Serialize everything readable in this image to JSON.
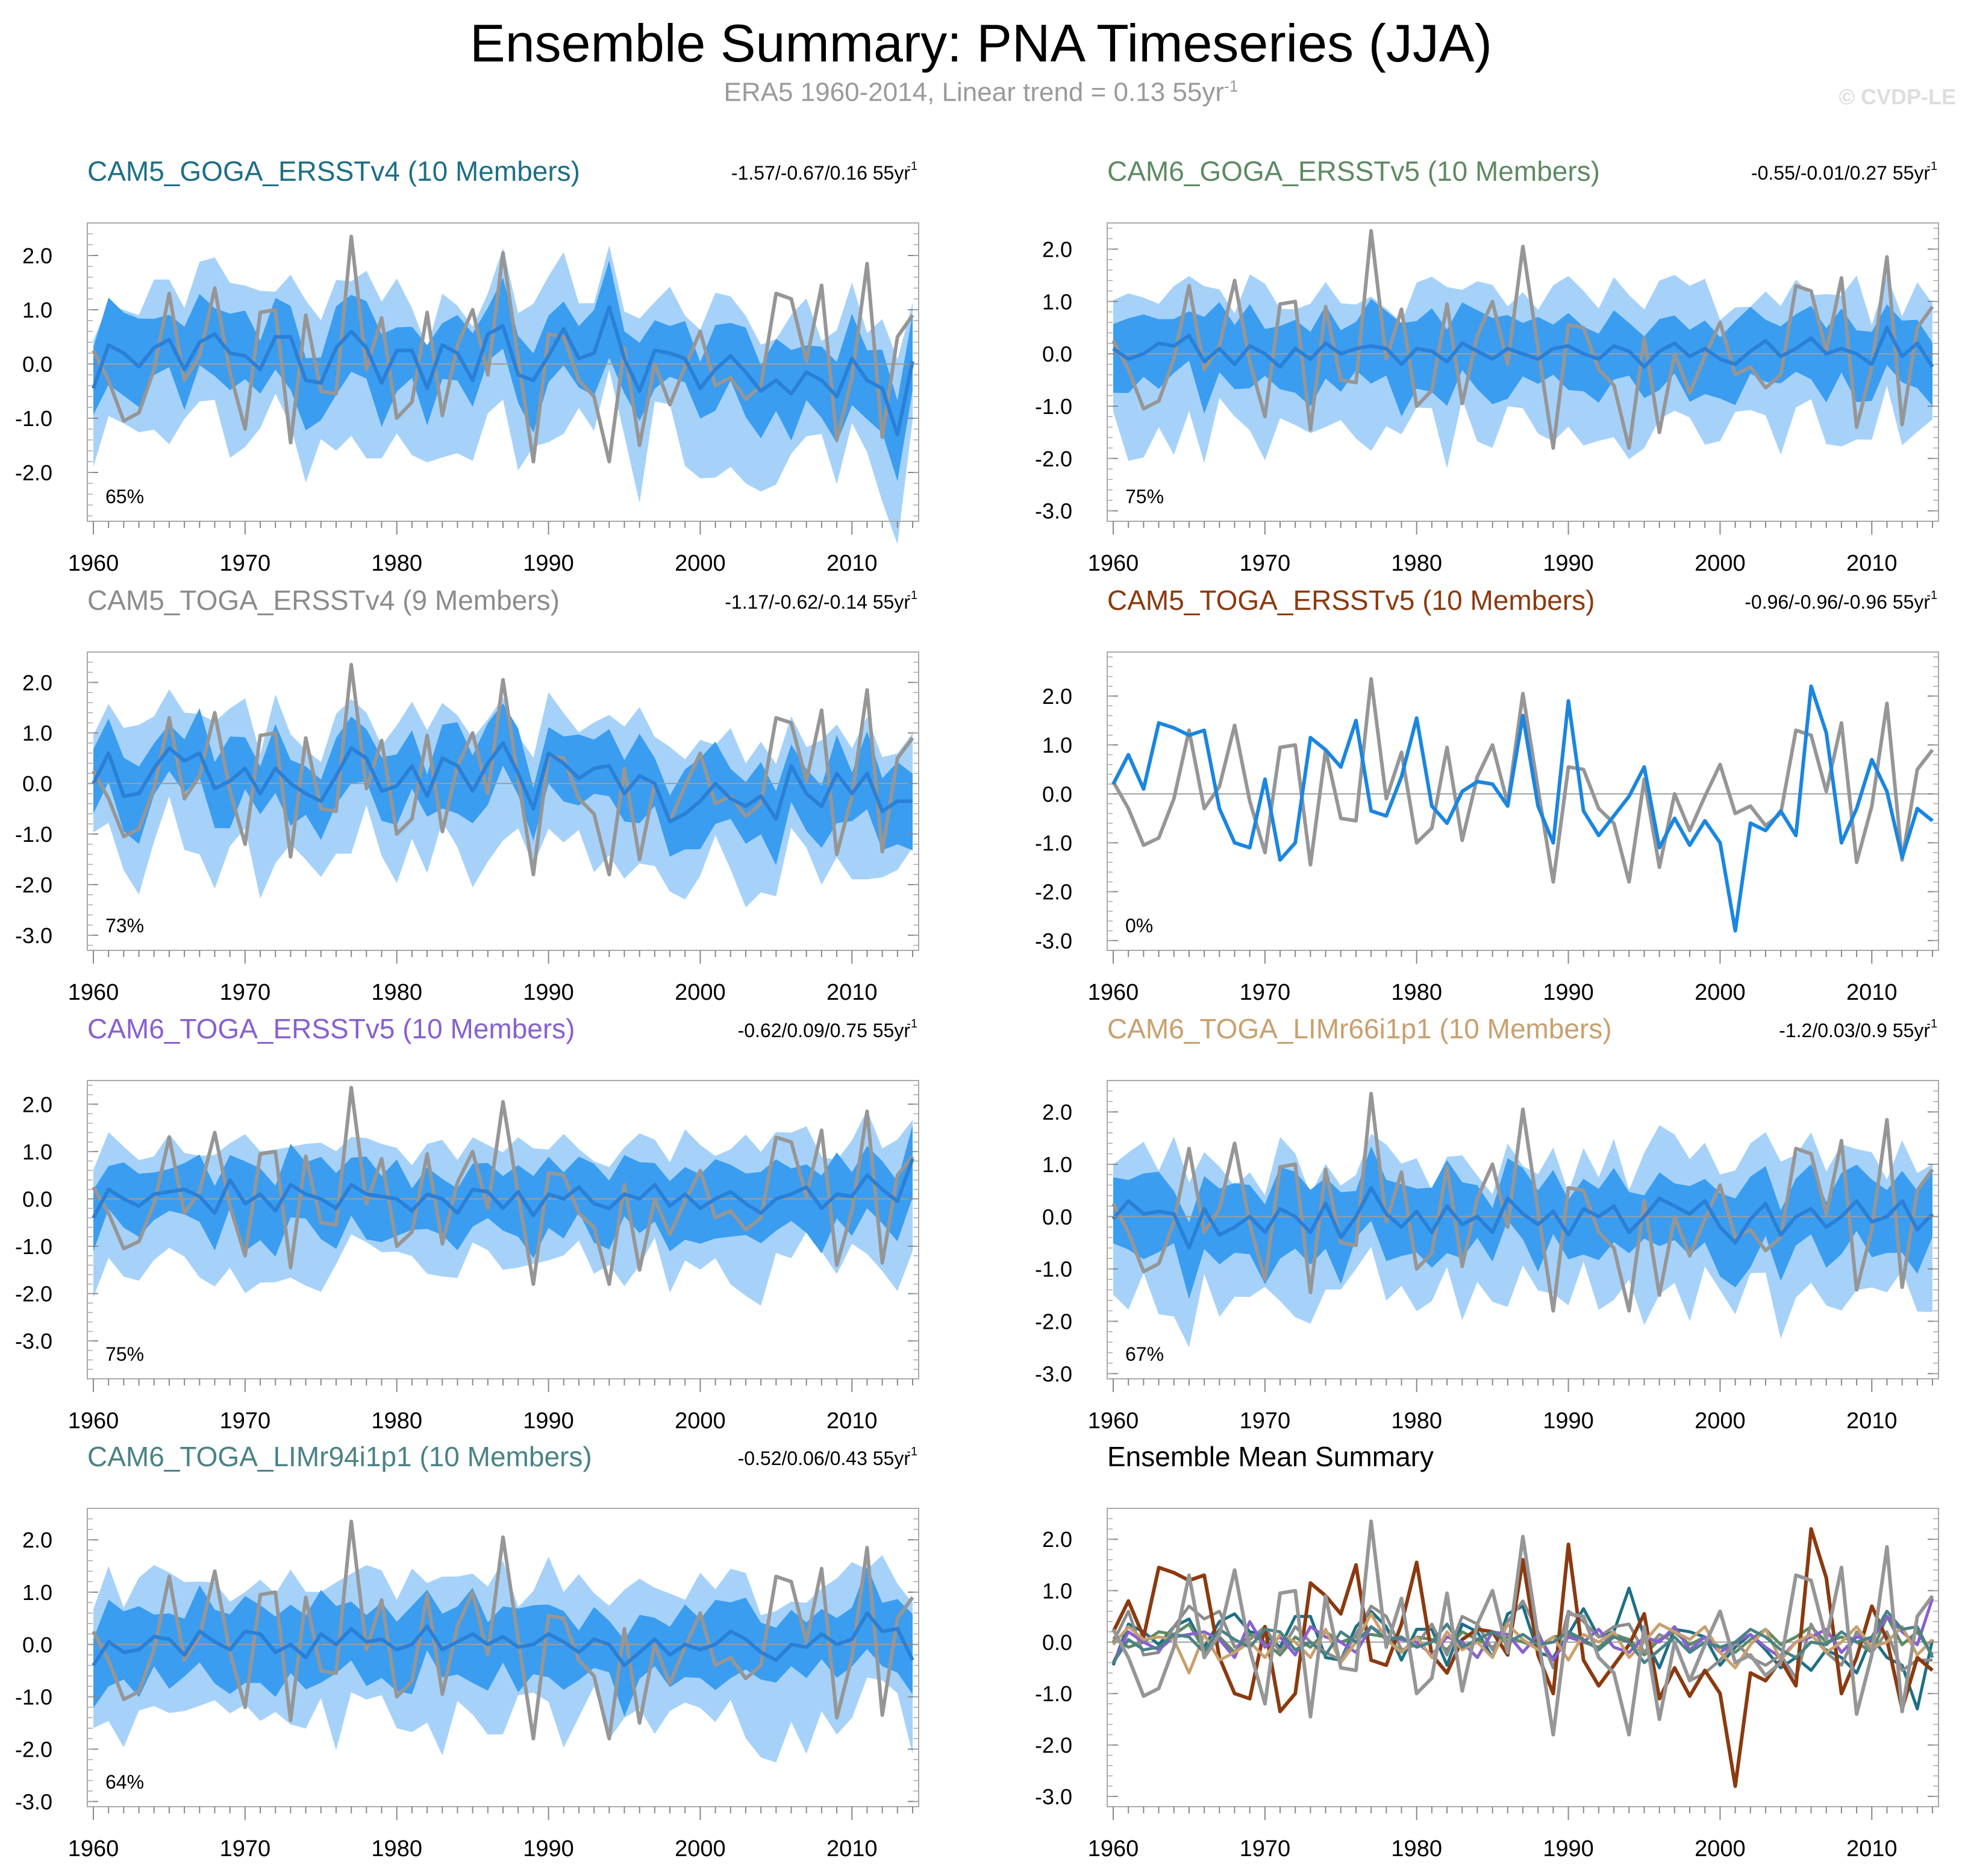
{
  "title": "Ensemble Summary: PNA Timeseries (JJA)",
  "subtitle": {
    "text": "ERA5 1960-2014, Linear trend = 0.13 55yr",
    "exp": "-1"
  },
  "copyright": "© CVDP-LE",
  "colors": {
    "outer_band": "#a6d2fa",
    "inner_band": "#3a9df0",
    "ens_mean": "#2a7fd6",
    "obs": "#969696",
    "zero_line": "#9e9e9e"
  },
  "chart_data": [
    {
      "type": "area",
      "id": "p1",
      "title": "CAM5_GOGA_ERSSTv4 (10 Members)",
      "title_color": "#1d6f86",
      "trend": "-1.57/-0.67/0.16 55yr",
      "trend_exp": "-1",
      "pct": "65%",
      "ylim": [
        -2.9,
        2.6
      ],
      "yticks": [
        -2.0,
        -1.0,
        0.0,
        1.0,
        2.0
      ],
      "xticks": [
        1960,
        1970,
        1980,
        1990,
        2000,
        2010
      ]
    },
    {
      "type": "area",
      "id": "p2",
      "title": "CAM6_GOGA_ERSSTv5 (10 Members)",
      "title_color": "#5d8a62",
      "trend": "-0.55/-0.01/0.27 55yr",
      "trend_exp": "-1",
      "pct": "75%",
      "ylim": [
        -3.2,
        2.5
      ],
      "yticks": [
        -3.0,
        -2.0,
        -1.0,
        0.0,
        1.0,
        2.0
      ],
      "xticks": [
        1960,
        1970,
        1980,
        1990,
        2000,
        2010
      ]
    },
    {
      "type": "area",
      "id": "p3",
      "title": "CAM5_TOGA_ERSSTv4 (9 Members)",
      "title_color": "#8c8c8c",
      "trend": "-1.17/-0.62/-0.14 55yr",
      "trend_exp": "-1",
      "pct": "73%",
      "ylim": [
        -3.3,
        2.6
      ],
      "yticks": [
        -3.0,
        -2.0,
        -1.0,
        0.0,
        1.0,
        2.0
      ],
      "xticks": [
        1960,
        1970,
        1980,
        1990,
        2000,
        2010
      ]
    },
    {
      "type": "line",
      "id": "p4",
      "title": "CAM5_TOGA_ERSSTv5 (10 Members)",
      "title_color": "#8b3a0f",
      "trend": "-0.96/-0.96/-0.96 55yr",
      "trend_exp": "-1",
      "pct": "0%",
      "ylim": [
        -3.2,
        2.9
      ],
      "yticks": [
        -3.0,
        -2.0,
        -1.0,
        0.0,
        1.0,
        2.0
      ],
      "xticks": [
        1960,
        1970,
        1980,
        1990,
        2000,
        2010
      ]
    },
    {
      "type": "area",
      "id": "p5",
      "title": "CAM6_TOGA_ERSSTv5 (10 Members)",
      "title_color": "#8860d0",
      "trend": "-0.62/0.09/0.75 55yr",
      "trend_exp": "-1",
      "pct": "75%",
      "ylim": [
        -3.8,
        2.5
      ],
      "yticks": [
        -3.0,
        -2.0,
        -1.0,
        0.0,
        1.0,
        2.0
      ],
      "xticks": [
        1960,
        1970,
        1980,
        1990,
        2000,
        2010
      ]
    },
    {
      "type": "area",
      "id": "p6",
      "title": "CAM6_TOGA_LIMr66i1p1 (10 Members)",
      "title_color": "#c8a06e",
      "trend": "-1.2/0.03/0.9 55yr",
      "trend_exp": "-1",
      "pct": "67%",
      "ylim": [
        -3.1,
        2.6
      ],
      "yticks": [
        -3.0,
        -2.0,
        -1.0,
        0.0,
        1.0,
        2.0
      ],
      "xticks": [
        1960,
        1970,
        1980,
        1990,
        2000,
        2010
      ]
    },
    {
      "type": "area",
      "id": "p7",
      "title": "CAM6_TOGA_LIMr94i1p1 (10 Members)",
      "title_color": "#4a8285",
      "trend": "-0.52/0.06/0.43 55yr",
      "trend_exp": "-1",
      "pct": "64%",
      "ylim": [
        -3.1,
        2.6
      ],
      "yticks": [
        -3.0,
        -2.0,
        -1.0,
        0.0,
        1.0,
        2.0
      ],
      "xticks": [
        1960,
        1970,
        1980,
        1990,
        2000,
        2010
      ]
    },
    {
      "type": "line",
      "id": "p8",
      "title": "Ensemble Mean Summary",
      "title_color": "#000000",
      "trend": "",
      "trend_exp": "",
      "pct": "",
      "ylim": [
        -3.2,
        2.6
      ],
      "yticks": [
        -3.0,
        -2.0,
        -1.0,
        0.0,
        1.0,
        2.0
      ],
      "xticks": [
        1960,
        1970,
        1980,
        1990,
        2000,
        2010
      ]
    }
  ],
  "years": [
    1960,
    2014
  ],
  "obs": [
    0.25,
    -0.3,
    -1.05,
    -0.9,
    -0.1,
    1.3,
    -0.3,
    0.15,
    1.4,
    -0.15,
    -1.2,
    0.95,
    1.0,
    -1.45,
    0.9,
    -0.5,
    -0.55,
    2.35,
    -0.1,
    0.85,
    -1.0,
    -0.7,
    0.95,
    -0.95,
    0.35,
    1.0,
    -0.2,
    2.05,
    0.1,
    -1.8,
    0.55,
    0.5,
    -0.3,
    -0.6,
    -1.8,
    0.3,
    -1.5,
    0.0,
    -0.75,
    -0.05,
    0.6,
    -0.4,
    -0.25,
    -0.65,
    -0.4,
    1.3,
    1.2,
    0.05,
    1.45,
    -1.4,
    -0.25,
    1.85,
    -1.35,
    0.5,
    0.9
  ],
  "amip_ersstv5": [
    0.2,
    0.8,
    0.1,
    1.45,
    1.35,
    1.2,
    1.3,
    -0.3,
    -1.0,
    -1.1,
    0.3,
    -1.35,
    -1.0,
    1.15,
    0.9,
    0.55,
    1.5,
    -0.35,
    -0.45,
    0.35,
    1.55,
    -0.25,
    -0.6,
    0.05,
    0.25,
    0.2,
    -0.25,
    1.6,
    -0.25,
    -1.0,
    1.9,
    -0.35,
    -0.85,
    -0.45,
    -0.05,
    0.55,
    -1.1,
    -0.5,
    -1.05,
    -0.55,
    -1.0,
    -2.8,
    -0.6,
    -0.75,
    -0.35,
    -0.85,
    2.2,
    1.25,
    -1.0,
    -0.3,
    0.7,
    0.05,
    -1.3,
    -0.3,
    -0.55
  ],
  "ens_means": {
    "p1": [
      -0.45,
      0.35,
      0.2,
      -0.05,
      0.3,
      0.45,
      -0.1,
      0.4,
      0.55,
      0.2,
      0.15,
      -0.1,
      0.5,
      0.5,
      -0.3,
      -0.35,
      0.3,
      0.6,
      0.3,
      -0.35,
      0.25,
      0.25,
      -0.45,
      0.35,
      0.2,
      -0.3,
      0.55,
      0.7,
      -0.2,
      -0.3,
      0.15,
      0.65,
      0.1,
      0.2,
      1.05,
      0.1,
      -0.5,
      0.25,
      0.2,
      0.1,
      -0.45,
      -0.1,
      0.15,
      -0.15,
      -0.5,
      -0.3,
      -0.55,
      -0.15,
      -0.3,
      -0.6,
      0.1,
      -0.3,
      -0.45,
      -1.3,
      0.05
    ],
    "p2": [
      0.1,
      -0.1,
      0.0,
      0.2,
      0.15,
      0.35,
      -0.15,
      0.1,
      -0.2,
      0.15,
      0.0,
      -0.25,
      0.1,
      -0.1,
      0.2,
      0.0,
      0.1,
      0.15,
      0.1,
      -0.2,
      0.1,
      0.05,
      -0.15,
      0.2,
      0.05,
      -0.1,
      0.1,
      0.0,
      -0.1,
      0.1,
      0.15,
      0.0,
      -0.1,
      0.15,
      0.05,
      -0.25,
      0.05,
      0.2,
      -0.05,
      0.1,
      -0.1,
      -0.2,
      0.05,
      0.25,
      -0.05,
      0.1,
      0.3,
      0.0,
      0.1,
      0.0,
      -0.2,
      0.5,
      -0.05,
      0.2,
      -0.25
    ],
    "p3": [
      0.0,
      0.6,
      -0.25,
      -0.2,
      0.3,
      0.7,
      0.45,
      0.6,
      -0.1,
      0.05,
      0.3,
      -0.2,
      0.3,
      0.0,
      -0.2,
      -0.35,
      0.15,
      0.7,
      0.5,
      -0.15,
      -0.05,
      0.35,
      -0.25,
      0.5,
      0.35,
      -0.15,
      0.4,
      0.8,
      0.2,
      -0.5,
      0.6,
      0.4,
      0.1,
      0.3,
      0.35,
      -0.2,
      0.15,
      0.0,
      -0.75,
      -0.6,
      -0.35,
      0.0,
      -0.3,
      -0.45,
      -0.25,
      -0.7,
      0.35,
      -0.2,
      -0.45,
      0.2,
      -0.2,
      0.2,
      -0.55,
      -0.35,
      -0.35
    ],
    "p5": [
      -0.4,
      0.2,
      0.0,
      -0.15,
      0.1,
      0.15,
      0.2,
      0.05,
      -0.3,
      0.4,
      -0.1,
      0.1,
      -0.25,
      0.3,
      0.1,
      0.0,
      -0.2,
      0.3,
      0.1,
      0.05,
      0.0,
      -0.25,
      0.1,
      0.0,
      -0.3,
      0.2,
      0.15,
      -0.2,
      0.15,
      -0.35,
      0.1,
      0.0,
      0.25,
      -0.1,
      -0.2,
      0.1,
      0.0,
      0.3,
      -0.15,
      0.1,
      -0.2,
      0.0,
      0.15,
      -0.1,
      -0.3,
      0.0,
      0.1,
      0.25,
      -0.2,
      0.1,
      0.05,
      0.5,
      0.2,
      -0.05,
      0.85
    ],
    "p6": [
      -0.05,
      0.3,
      0.05,
      0.1,
      0.05,
      -0.6,
      0.15,
      -0.35,
      -0.2,
      0.0,
      -0.3,
      0.15,
      0.0,
      -0.3,
      0.25,
      -0.4,
      0.0,
      0.55,
      0.05,
      -0.2,
      0.1,
      -0.3,
      0.2,
      -0.15,
      0.0,
      -0.3,
      0.35,
      0.05,
      -0.15,
      0.1,
      -0.35,
      0.15,
      0.0,
      0.2,
      -0.3,
      0.0,
      0.35,
      0.2,
      0.05,
      0.3,
      -0.2,
      -0.5,
      -0.05,
      0.25,
      -0.35,
      0.0,
      0.15,
      -0.2,
      0.0,
      0.3,
      -0.1,
      0.0,
      0.3,
      -0.25,
      0.05
    ],
    "p7": [
      -0.4,
      0.05,
      -0.15,
      -0.1,
      0.15,
      0.1,
      -0.2,
      0.25,
      0.05,
      -0.1,
      0.25,
      0.2,
      -0.15,
      0.0,
      -0.25,
      0.2,
      0.0,
      0.3,
      0.05,
      0.1,
      -0.1,
      0.0,
      0.35,
      -0.1,
      0.05,
      0.2,
      0.0,
      0.15,
      -0.05,
      0.0,
      0.2,
      0.05,
      -0.15,
      0.1,
      0.0,
      -0.4,
      -0.15,
      0.1,
      -0.2,
      0.0,
      -0.1,
      0.0,
      0.25,
      0.1,
      -0.15,
      -0.3,
      0.0,
      -0.05,
      0.2,
      0.0,
      0.1,
      0.6,
      0.25,
      0.3,
      -0.3
    ]
  },
  "summary_series": [
    {
      "name": "CAM5_GOGA_ERSSTv4",
      "color": "#1d6f86",
      "ref": "p1"
    },
    {
      "name": "CAM6_GOGA_ERSSTv5",
      "color": "#5d8a62",
      "ref": "p2"
    },
    {
      "name": "CAM5_TOGA_ERSSTv4",
      "color": "#8c8c8c",
      "ref": "p3"
    },
    {
      "name": "CAM5_TOGA_ERSSTv5",
      "color": "#8b3a0f",
      "ref": "amip_ersstv5"
    },
    {
      "name": "CAM6_TOGA_ERSSTv5",
      "color": "#8860d0",
      "ref": "p5"
    },
    {
      "name": "CAM6_TOGA_LIMr66i1p1",
      "color": "#c8a06e",
      "ref": "p6"
    },
    {
      "name": "CAM6_TOGA_LIMr94i1p1",
      "color": "#4a8285",
      "ref": "p7"
    },
    {
      "name": "ERA5",
      "color": "#969696",
      "ref": "obs"
    }
  ]
}
